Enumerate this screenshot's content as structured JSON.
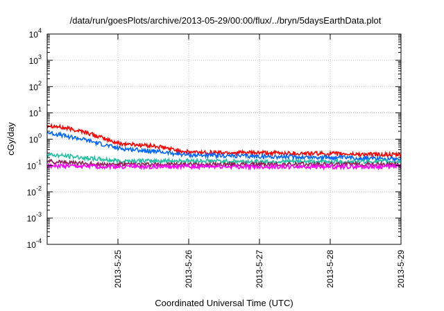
{
  "chart_data": {
    "type": "line",
    "title": "/data/run/goesPlots/archive/2013-05-29/00:00/flux/../bryn/5daysEarthData.plot",
    "xlabel": "Coordinated Universal Time (UTC)",
    "ylabel": "cGy/day",
    "yscale": "log",
    "ylim": [
      0.0001,
      10000
    ],
    "yticks": [
      {
        "base": "10",
        "exp": "-4"
      },
      {
        "base": "10",
        "exp": "-3"
      },
      {
        "base": "10",
        "exp": "-2"
      },
      {
        "base": "10",
        "exp": "-1"
      },
      {
        "base": "10",
        "exp": "0"
      },
      {
        "base": "10",
        "exp": "1"
      },
      {
        "base": "10",
        "exp": "2"
      },
      {
        "base": "10",
        "exp": "3"
      },
      {
        "base": "10",
        "exp": "4"
      }
    ],
    "xlim": [
      "2013-05-24 00:00",
      "2013-05-29 00:00"
    ],
    "xtick_labels": [
      "2013-5-25",
      "2013-5-26",
      "2013-5-27",
      "2013-5-28",
      "2013-5-29"
    ],
    "grid": true,
    "legend": "none",
    "series": [
      {
        "color": "#ff0000",
        "x": [
          "2013-05-24",
          "2013-05-24 12:00",
          "2013-05-25",
          "2013-05-25 12:00",
          "2013-05-26",
          "2013-05-27",
          "2013-05-28",
          "2013-05-29"
        ],
        "values": [
          3.5,
          2.0,
          0.7,
          0.55,
          0.32,
          0.3,
          0.28,
          0.25
        ]
      },
      {
        "color": "#0066ff",
        "x": [
          "2013-05-24",
          "2013-05-24 12:00",
          "2013-05-25",
          "2013-05-25 12:00",
          "2013-05-26",
          "2013-05-27",
          "2013-05-28",
          "2013-05-29"
        ],
        "values": [
          1.8,
          1.0,
          0.45,
          0.35,
          0.25,
          0.22,
          0.2,
          0.18
        ]
      },
      {
        "color": "#20c0a0",
        "x": [
          "2013-05-24",
          "2013-05-24 12:00",
          "2013-05-25",
          "2013-05-25 12:00",
          "2013-05-26",
          "2013-05-27",
          "2013-05-28",
          "2013-05-29"
        ],
        "values": [
          0.26,
          0.2,
          0.15,
          0.15,
          0.15,
          0.14,
          0.14,
          0.14
        ]
      },
      {
        "color": "#8b2252",
        "x": [
          "2013-05-24",
          "2013-05-24 12:00",
          "2013-05-25",
          "2013-05-25 12:00",
          "2013-05-26",
          "2013-05-27",
          "2013-05-28",
          "2013-05-29"
        ],
        "values": [
          0.14,
          0.12,
          0.11,
          0.11,
          0.11,
          0.11,
          0.11,
          0.11
        ]
      },
      {
        "color": "#ff00ff",
        "x": [
          "2013-05-24",
          "2013-05-24 12:00",
          "2013-05-25",
          "2013-05-25 12:00",
          "2013-05-26",
          "2013-05-27",
          "2013-05-28",
          "2013-05-29"
        ],
        "values": [
          0.1,
          0.09,
          0.09,
          0.09,
          0.09,
          0.09,
          0.09,
          0.09
        ]
      }
    ]
  }
}
